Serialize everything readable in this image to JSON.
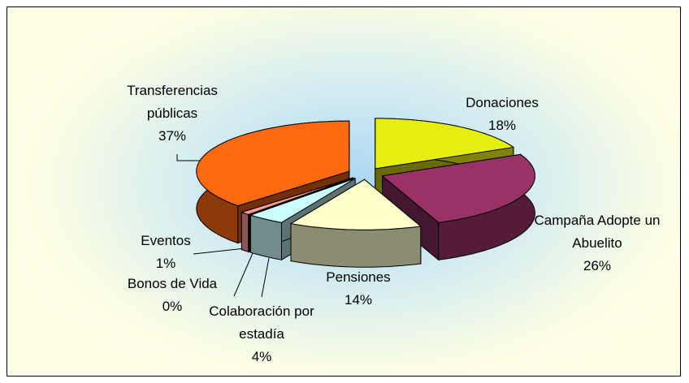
{
  "chart_data": {
    "type": "pie",
    "categories": [
      "Donaciones",
      "Campaña Adopte un Abuelito",
      "Pensiones",
      "Colaboración por estadía",
      "Bonos de Vida",
      "Eventos",
      "Transferencias públicas"
    ],
    "values": [
      18,
      26,
      14,
      4,
      0,
      1,
      37
    ],
    "value_labels": [
      "18%",
      "26%",
      "14%",
      "4%",
      "0%",
      "1%",
      "37%"
    ],
    "colors": [
      "#e6ee10",
      "#993366",
      "#ffffcc",
      "#ccffff",
      "#202020",
      "#ff9999",
      "#ff6a10"
    ]
  }
}
